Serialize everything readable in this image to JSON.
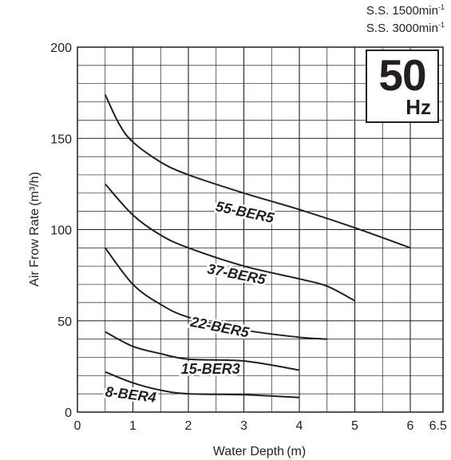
{
  "speed_labels": {
    "line1_prefix": "S.S. 1500min",
    "line1_sup": "-1",
    "line2_prefix": "S.S. 3000min",
    "line2_sup": "-1"
  },
  "frequency_badge": {
    "value": "50",
    "unit": "Hz"
  },
  "chart_data": {
    "type": "line",
    "title": "",
    "xlabel": "Water Depth (m)",
    "ylabel": "Air Frow Rate (m³/h)",
    "xlim": [
      0,
      6.5
    ],
    "ylim": [
      0,
      200
    ],
    "x_ticks": [
      0,
      1,
      2,
      3,
      4,
      5,
      6,
      6.5
    ],
    "x_tick_labels": [
      "0",
      "1",
      "2",
      "3",
      "4",
      "5",
      "6",
      "6.5"
    ],
    "y_ticks": [
      0,
      50,
      100,
      150,
      200
    ],
    "y_tick_labels": [
      "0",
      "50",
      "100",
      "150",
      "200"
    ],
    "grid": true,
    "series": [
      {
        "name": "55-BER5",
        "x": [
          0.5,
          0.75,
          1.0,
          1.5,
          2.0,
          3.0,
          4.0,
          5.0,
          6.0
        ],
        "y": [
          174,
          158,
          148,
          137,
          130,
          120,
          111,
          101,
          90
        ]
      },
      {
        "name": "37-BER5",
        "x": [
          0.5,
          1.0,
          1.5,
          2.0,
          3.0,
          4.0,
          4.5,
          5.0
        ],
        "y": [
          125,
          108,
          97,
          90,
          80,
          73,
          69,
          61
        ]
      },
      {
        "name": "22-BER5",
        "x": [
          0.5,
          1.0,
          1.5,
          2.0,
          3.0,
          4.0,
          4.5
        ],
        "y": [
          90,
          70,
          59,
          52,
          45,
          41,
          40
        ]
      },
      {
        "name": "15-BER3",
        "x": [
          0.5,
          1.0,
          1.5,
          2.0,
          3.0,
          4.0
        ],
        "y": [
          44,
          36,
          32,
          29,
          28,
          23
        ]
      },
      {
        "name": "8-BER4",
        "x": [
          0.5,
          1.0,
          1.5,
          2.0,
          3.0,
          4.0
        ],
        "y": [
          22,
          16,
          12,
          10,
          9.5,
          8
        ]
      }
    ]
  }
}
